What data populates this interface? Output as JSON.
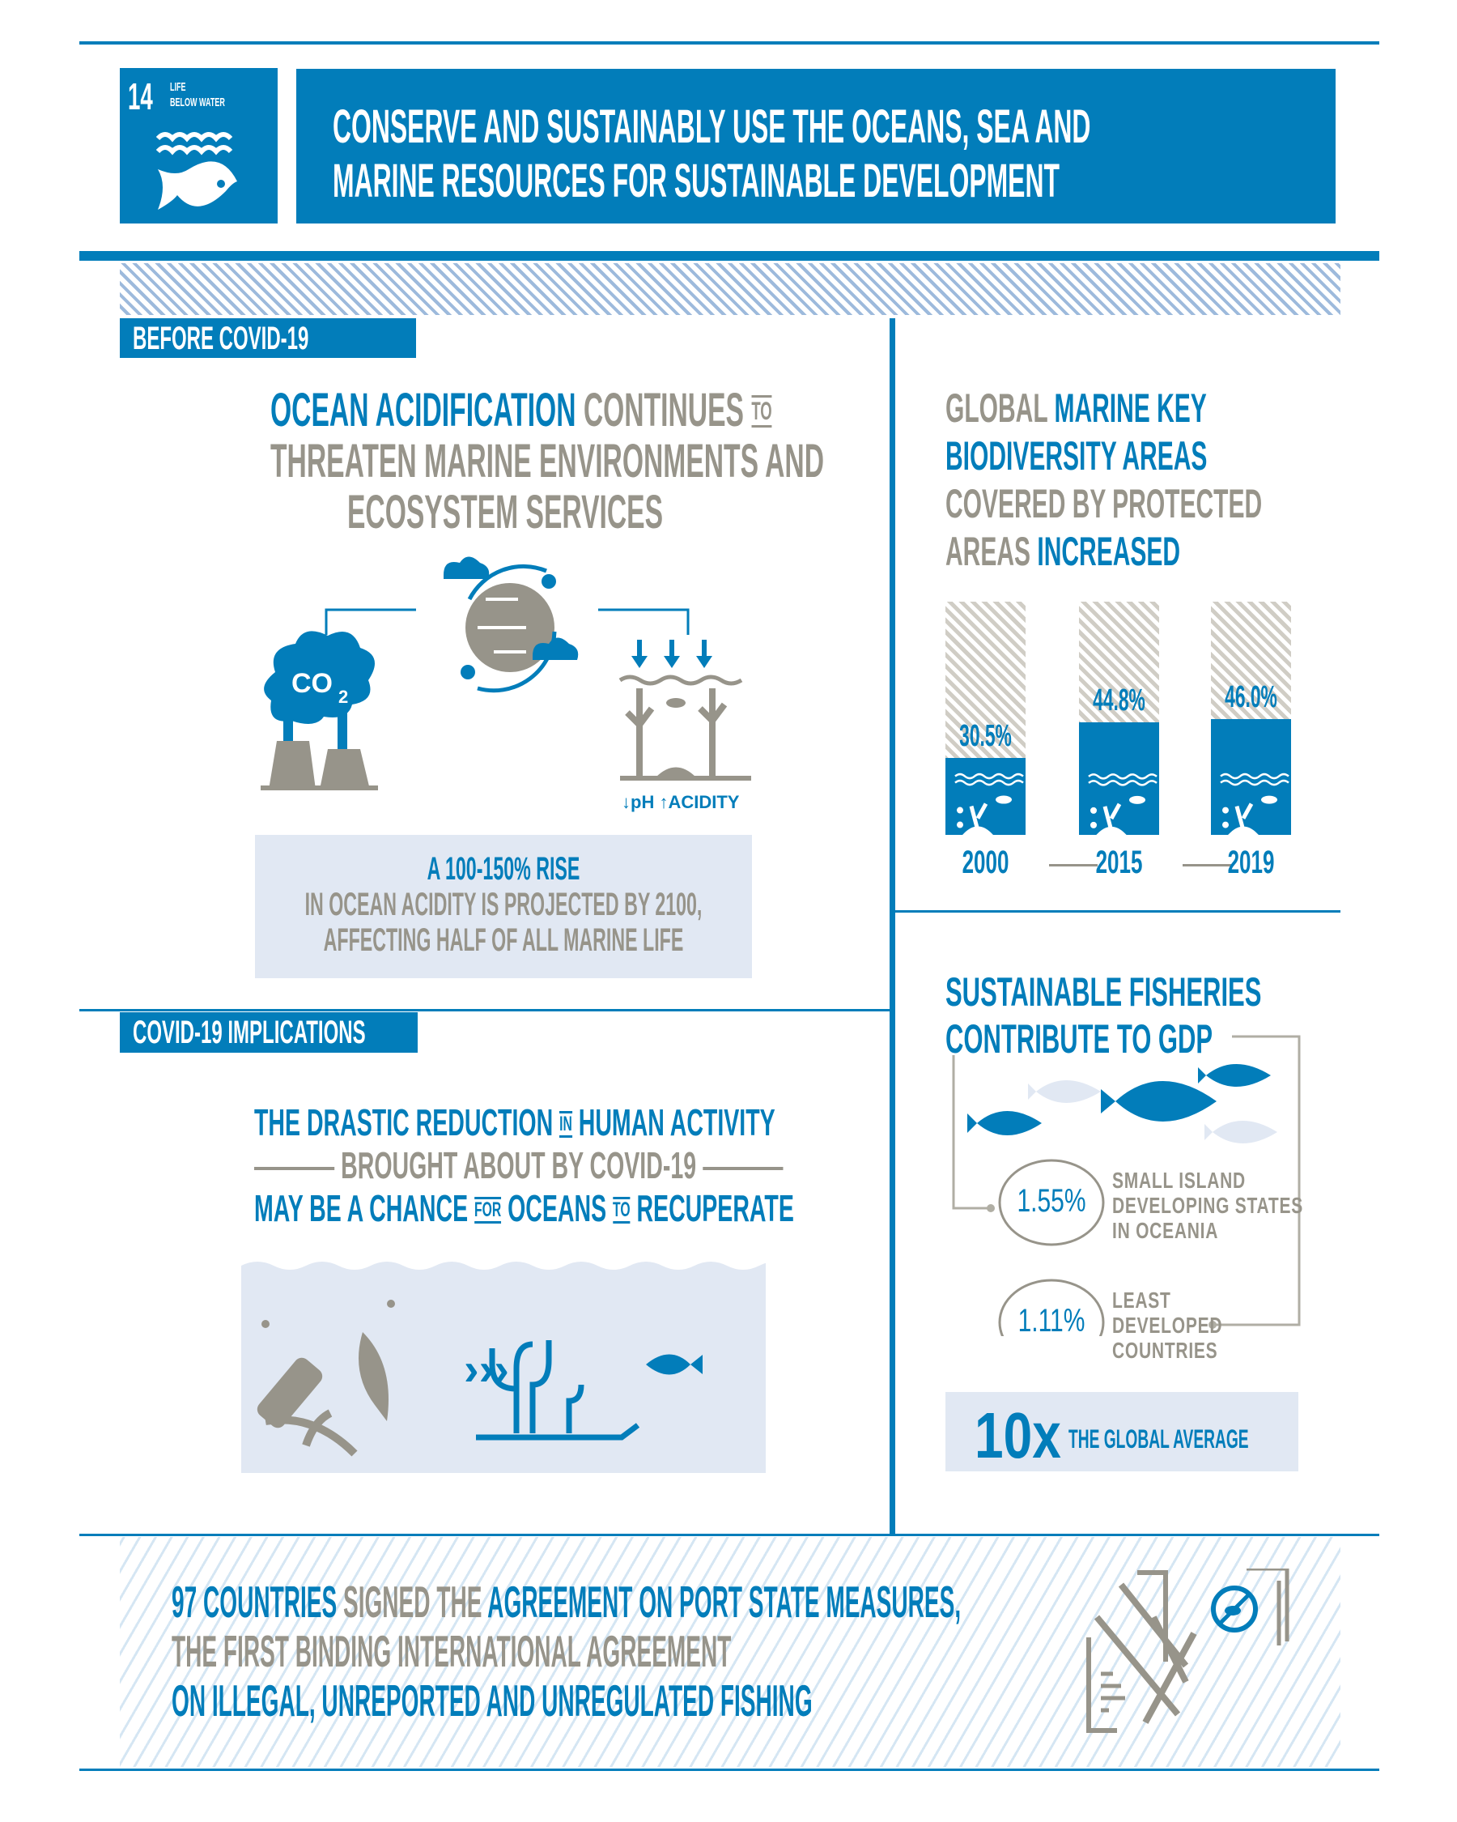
{
  "header": {
    "goal_number": "14",
    "goal_name_line1": "LIFE",
    "goal_name_line2": "BELOW WATER",
    "title_line1": "CONSERVE AND SUSTAINABLY USE THE OCEANS, SEA AND",
    "title_line2": "MARINE RESOURCES FOR SUSTAINABLE DEVELOPMENT"
  },
  "colors": {
    "brand": "#027dba",
    "gray": "#97948a",
    "light": "#e1e8f3"
  },
  "before": {
    "tag": "BEFORE COVID-19",
    "headline": {
      "l1_blue": "OCEAN ACIDIFICATION",
      "l1_gray": "CONTINUES",
      "l1_small": "TO",
      "l2": "THREATEN MARINE ENVIRONMENTS AND",
      "l3": "ECOSYSTEM SERVICES"
    },
    "icons": [
      "factory-co2-icon",
      "globe-climate-icon",
      "ocean-acidity-icon"
    ],
    "co2": "CO",
    "co2_sub": "2",
    "ph": "pH",
    "acidity": "ACIDITY",
    "fact": {
      "l1": "A 100-150% RISE",
      "l2": "IN OCEAN ACIDITY IS PROJECTED BY 2100,",
      "l3": "AFFECTING HALF OF ALL MARINE LIFE"
    }
  },
  "covid": {
    "tag": "COVID-19 IMPLICATIONS",
    "l1a": "THE DRASTIC REDUCTION",
    "l1s": "IN",
    "l1b": "HUMAN ACTIVITY",
    "l2": "BROUGHT ABOUT BY COVID-19",
    "l3a": "MAY BE A CHANCE",
    "l3s1": "FOR",
    "l3b": "OCEANS",
    "l3s2": "TO",
    "l3c": "RECUPERATE"
  },
  "kba": {
    "t1g": "GLOBAL",
    "t1b": "MARINE KEY",
    "t2": "BIODIVERSITY AREAS",
    "t3": "COVERED BY PROTECTED",
    "t4g": "AREAS",
    "t4b": "INCREASED"
  },
  "chart_data": {
    "type": "bar",
    "categories": [
      "2000",
      "2015",
      "2019"
    ],
    "values": [
      30.5,
      44.8,
      46.0
    ],
    "labels": [
      "30.5%",
      "44.8%",
      "46.0%"
    ],
    "unit": "%"
  },
  "fisheries": {
    "t1": "SUSTAINABLE FISHERIES",
    "t2": "CONTRIBUTE TO GDP",
    "items": [
      {
        "value": "1.55%",
        "label": [
          "SMALL ISLAND",
          "DEVELOPING STATES",
          "IN OCEANIA"
        ]
      },
      {
        "value": "1.11%",
        "label": [
          "LEAST",
          "DEVELOPED",
          "COUNTRIES"
        ]
      }
    ],
    "multiplier": "10x",
    "multiplier_text": "THE GLOBAL AVERAGE"
  },
  "footer": {
    "a_blue": "97 COUNTRIES",
    "a_gray": "SIGNED THE",
    "a_blue2": "AGREEMENT ON PORT STATE MEASURES,",
    "b": "THE FIRST BINDING INTERNATIONAL AGREEMENT",
    "c": "ON ILLEGAL, UNREPORTED AND UNREGULATED FISHING"
  }
}
